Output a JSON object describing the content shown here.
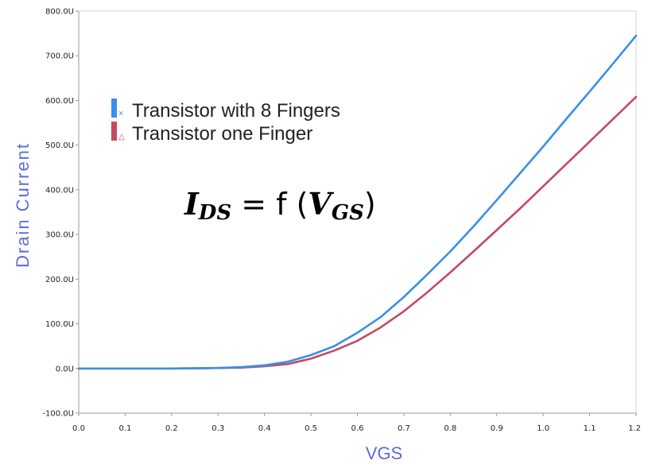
{
  "chart_data": {
    "type": "line",
    "xlabel": "VGS",
    "ylabel": "Drain Current",
    "xlim": [
      0.0,
      1.2
    ],
    "ylim": [
      -100,
      800
    ],
    "x_ticks": [
      "0.0",
      "0.1",
      "0.2",
      "0.3",
      "0.4",
      "0.5",
      "0.6",
      "0.7",
      "0.8",
      "0.9",
      "1.0",
      "1.1",
      "1.2"
    ],
    "y_ticks": [
      "800.0U",
      "700.0U",
      "600.0U",
      "500.0U",
      "400.0U",
      "300.0U",
      "200.0U",
      "100.0U",
      "0.0U",
      "-100.0U"
    ],
    "grid": false,
    "legend_position": "top-left",
    "annotation": {
      "lhs": "I",
      "lhs_sub": "DS",
      "mid": " =  f (",
      "rhs": "V",
      "rhs_sub": "GS",
      "close": ")"
    },
    "series": [
      {
        "name": "Transistor with 8 Fingers",
        "marker": "×",
        "color": "#3a8fe8",
        "x": [
          0.0,
          0.1,
          0.2,
          0.3,
          0.35,
          0.4,
          0.45,
          0.5,
          0.55,
          0.6,
          0.65,
          0.7,
          0.75,
          0.8,
          0.85,
          0.9,
          0.95,
          1.0,
          1.05,
          1.1,
          1.15,
          1.2
        ],
        "y": [
          0,
          0,
          0,
          1,
          3,
          7,
          15,
          30,
          50,
          80,
          115,
          160,
          210,
          262,
          318,
          377,
          437,
          497,
          559,
          620,
          682,
          745
        ]
      },
      {
        "name": "Transistor one Finger",
        "marker": "△",
        "color": "#c54a5e",
        "x": [
          0.0,
          0.1,
          0.2,
          0.3,
          0.35,
          0.4,
          0.45,
          0.5,
          0.55,
          0.6,
          0.65,
          0.7,
          0.75,
          0.8,
          0.85,
          0.9,
          0.95,
          1.0,
          1.05,
          1.1,
          1.15,
          1.2
        ],
        "y": [
          0,
          0,
          0,
          1,
          2,
          5,
          10,
          22,
          40,
          62,
          92,
          128,
          170,
          215,
          262,
          310,
          358,
          408,
          458,
          508,
          558,
          608
        ]
      }
    ]
  }
}
